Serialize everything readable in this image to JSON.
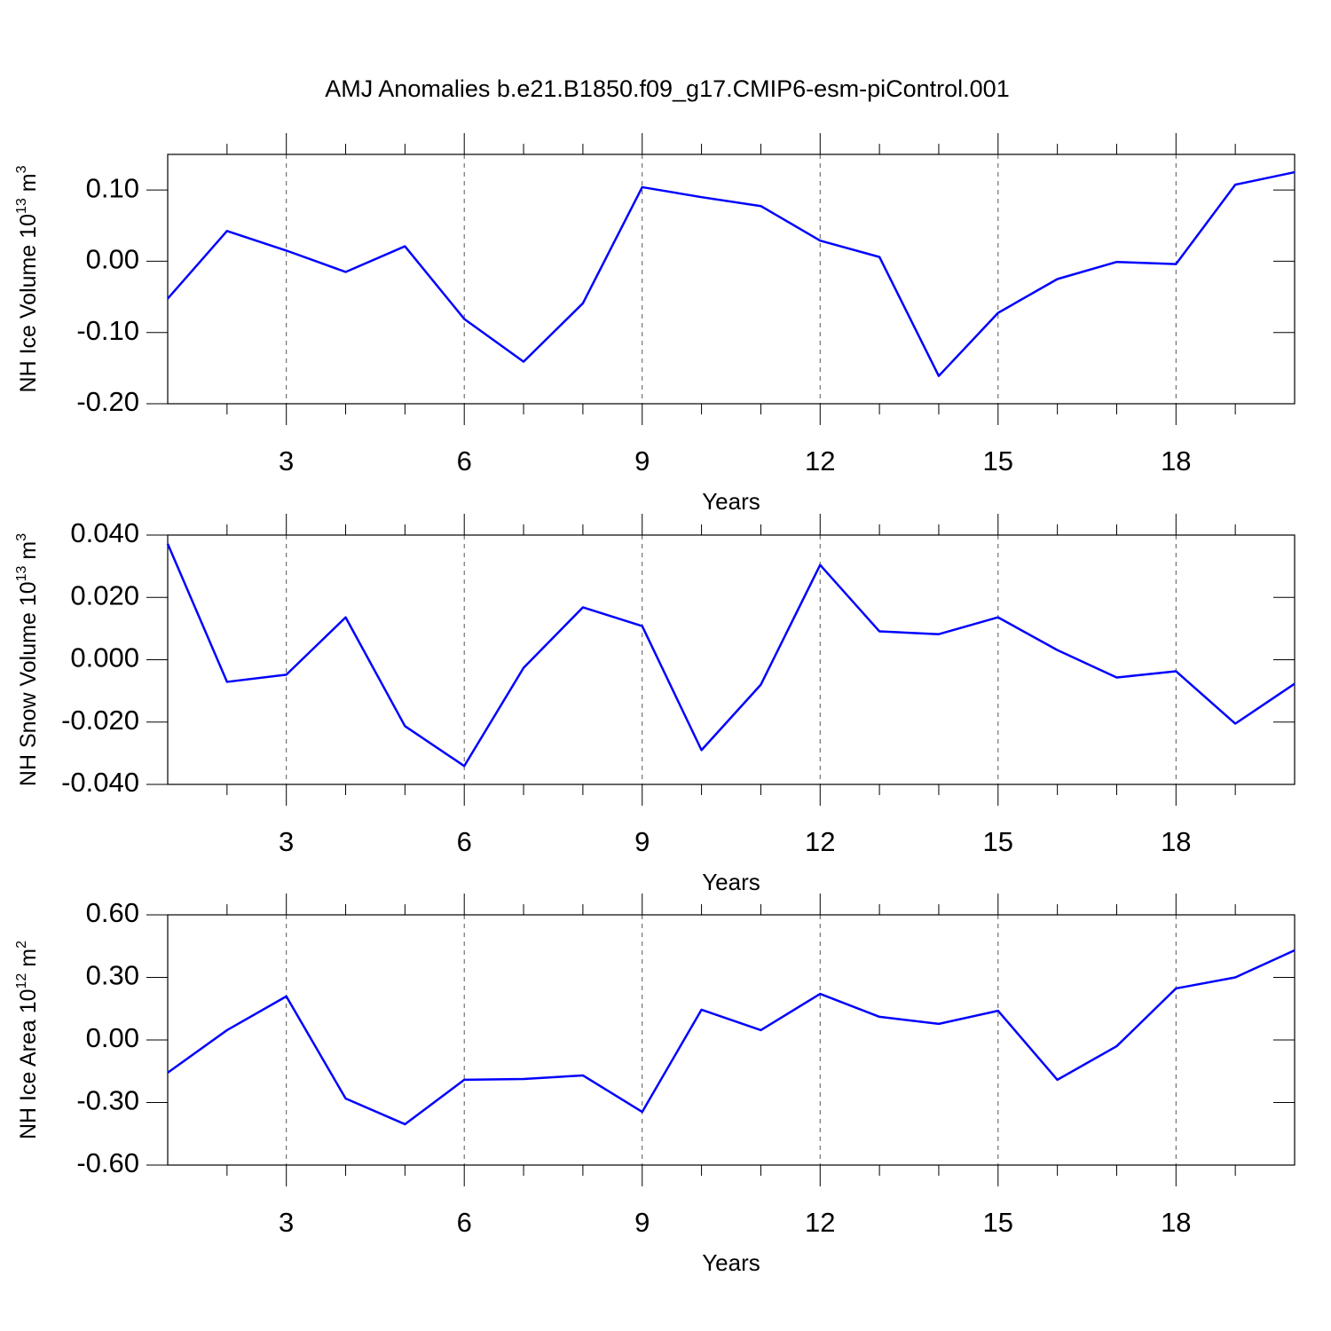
{
  "title": "AMJ Anomalies b.e21.B1850.f09_g17.CMIP6-esm-piControl.001",
  "chart_data": [
    {
      "type": "line",
      "color": "#0000ff",
      "grid": true,
      "xlabel": "Years",
      "ylabel": [
        {
          "text": "NH Ice Volume 10"
        },
        {
          "text": "13",
          "sup": true
        },
        {
          "text": " m"
        },
        {
          "text": "3",
          "sup": true
        }
      ],
      "x": [
        1,
        2,
        3,
        4,
        5,
        6,
        7,
        8,
        9,
        10,
        11,
        12,
        13,
        14,
        15,
        16,
        17,
        18,
        19,
        20
      ],
      "values": [
        -0.0525,
        0.0425,
        0.015,
        -0.015,
        0.021,
        -0.081,
        -0.141,
        -0.059,
        0.104,
        0.09,
        0.0775,
        0.029,
        0.006,
        -0.161,
        -0.0725,
        -0.025,
        -0.001,
        -0.004,
        0.1075,
        0.125
      ],
      "xlim": [
        1,
        20
      ],
      "xticks": [
        3,
        6,
        9,
        12,
        15,
        18
      ],
      "xminorticks": [
        2,
        4,
        5,
        7,
        8,
        10,
        11,
        13,
        14,
        16,
        17,
        19
      ],
      "ylim": [
        -0.2,
        0.15
      ],
      "yticks": [
        {
          "value": 0.1,
          "label": "0.10"
        },
        {
          "value": 0,
          "label": "0.00"
        },
        {
          "value": -0.1,
          "label": "-0.10"
        },
        {
          "value": -0.2,
          "label": "-0.20"
        }
      ]
    },
    {
      "type": "line",
      "color": "#0000ff",
      "grid": true,
      "xlabel": "Years",
      "ylabel": [
        {
          "text": "NH Snow Volume 10"
        },
        {
          "text": "13",
          "sup": true
        },
        {
          "text": " m"
        },
        {
          "text": "3",
          "sup": true
        }
      ],
      "x": [
        1,
        2,
        3,
        4,
        5,
        6,
        7,
        8,
        9,
        10,
        11,
        12,
        13,
        14,
        15,
        16,
        17,
        18,
        19,
        20
      ],
      "values": [
        0.0372,
        -0.0071,
        -0.0048,
        0.0136,
        -0.0213,
        -0.0341,
        -0.0026,
        0.0168,
        0.0108,
        -0.029,
        -0.008,
        0.0304,
        0.0091,
        0.0082,
        0.0136,
        0.0031,
        -0.0057,
        -0.0037,
        -0.0205,
        -0.0077
      ],
      "xlim": [
        1,
        20
      ],
      "xticks": [
        3,
        6,
        9,
        12,
        15,
        18
      ],
      "xminorticks": [
        2,
        4,
        5,
        7,
        8,
        10,
        11,
        13,
        14,
        16,
        17,
        19
      ],
      "ylim": [
        -0.04,
        0.04
      ],
      "yticks": [
        {
          "value": 0.04,
          "label": "0.040"
        },
        {
          "value": 0.02,
          "label": "0.020"
        },
        {
          "value": 0,
          "label": "0.000"
        },
        {
          "value": -0.02,
          "label": "-0.020"
        },
        {
          "value": -0.04,
          "label": "-0.040"
        }
      ]
    },
    {
      "type": "line",
      "color": "#0000ff",
      "grid": true,
      "xlabel": "Years",
      "ylabel": [
        {
          "text": "NH Ice Area 10"
        },
        {
          "text": "12",
          "sup": true
        },
        {
          "text": " m"
        },
        {
          "text": "2",
          "sup": true
        }
      ],
      "x": [
        1,
        2,
        3,
        4,
        5,
        6,
        7,
        8,
        9,
        10,
        11,
        12,
        13,
        14,
        15,
        16,
        17,
        18,
        19,
        20
      ],
      "values": [
        -0.157,
        0.047,
        0.209,
        -0.281,
        -0.404,
        -0.191,
        -0.187,
        -0.17,
        -0.345,
        0.145,
        0.047,
        0.221,
        0.111,
        0.077,
        0.14,
        -0.191,
        -0.03,
        0.247,
        0.3,
        0.43
      ],
      "xlim": [
        1,
        20
      ],
      "xticks": [
        3,
        6,
        9,
        12,
        15,
        18
      ],
      "xminorticks": [
        2,
        4,
        5,
        7,
        8,
        10,
        11,
        13,
        14,
        16,
        17,
        19
      ],
      "ylim": [
        -0.6,
        0.6
      ],
      "yticks": [
        {
          "value": 0.6,
          "label": "0.60"
        },
        {
          "value": 0.3,
          "label": "0.30"
        },
        {
          "value": 0,
          "label": "0.00"
        },
        {
          "value": -0.3,
          "label": "-0.30"
        },
        {
          "value": -0.6,
          "label": "-0.60"
        }
      ]
    }
  ]
}
